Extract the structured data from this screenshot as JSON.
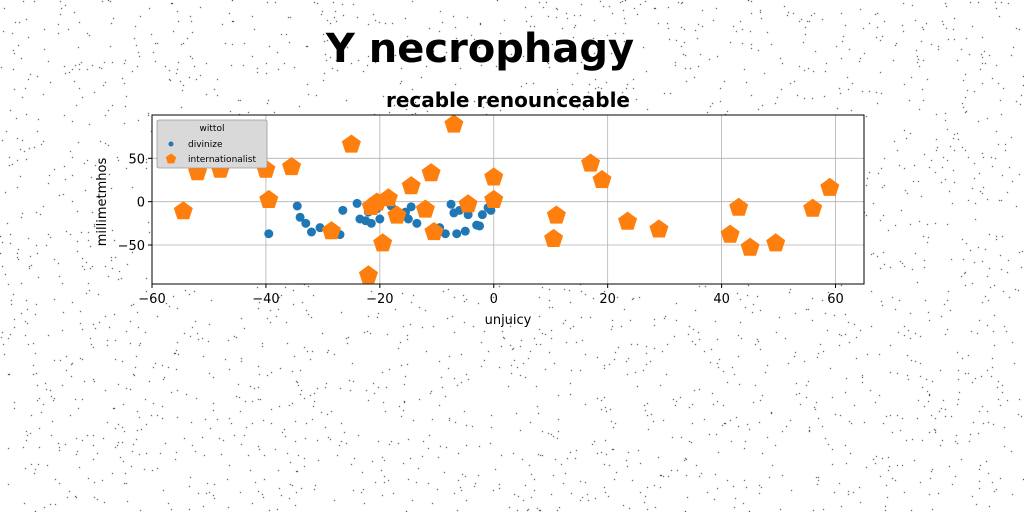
{
  "figure": {
    "suptitle": "Y necrophagy"
  },
  "chart_data": {
    "type": "scatter",
    "title": "recable renounceable",
    "xlabel": "unjuicy",
    "ylabel": "millimetmhos",
    "xlim": [
      -60,
      65
    ],
    "ylim": [
      -95,
      100
    ],
    "xticks": [
      -60,
      -40,
      -20,
      0,
      20,
      40,
      60
    ],
    "yticks": [
      -50,
      0,
      50
    ],
    "grid": true,
    "legend": {
      "title": "wittol",
      "placement": "upper-left"
    },
    "series": [
      {
        "name": "divinize",
        "marker": "circle",
        "color": "#1f77b4",
        "points": [
          [
            -39.5,
            -37
          ],
          [
            -34.5,
            -5
          ],
          [
            -34,
            -18
          ],
          [
            -33,
            -25
          ],
          [
            -32,
            -35
          ],
          [
            -30.5,
            -30
          ],
          [
            -28,
            -32
          ],
          [
            -27,
            -38
          ],
          [
            -26.5,
            -10
          ],
          [
            -24,
            -2
          ],
          [
            -23.5,
            -20
          ],
          [
            -22.5,
            -22
          ],
          [
            -22,
            -12
          ],
          [
            -21.5,
            -25
          ],
          [
            -20.5,
            -8
          ],
          [
            -20,
            -20
          ],
          [
            -18,
            -5
          ],
          [
            -17,
            -18
          ],
          [
            -15.5,
            -12
          ],
          [
            -15,
            -20
          ],
          [
            -14.5,
            -6
          ],
          [
            -13.5,
            -25
          ],
          [
            -9.5,
            -30
          ],
          [
            -8.5,
            -37
          ],
          [
            -7.5,
            -3
          ],
          [
            -7,
            -13
          ],
          [
            -6.5,
            -37
          ],
          [
            -6,
            -10
          ],
          [
            -5,
            -34
          ],
          [
            -4.5,
            -15
          ],
          [
            -4,
            -5
          ],
          [
            -3,
            -27
          ],
          [
            -2.5,
            -28
          ],
          [
            -2,
            -15
          ],
          [
            -1,
            -7
          ],
          [
            -0.5,
            -10
          ]
        ]
      },
      {
        "name": "internationalist",
        "marker": "pentagon",
        "color": "#ff7f0e",
        "points": [
          [
            -54.5,
            -11
          ],
          [
            -52,
            34
          ],
          [
            -48,
            37
          ],
          [
            -40,
            37
          ],
          [
            -39.5,
            2
          ],
          [
            -35.5,
            40
          ],
          [
            -28.5,
            -34
          ],
          [
            -25,
            66
          ],
          [
            -22,
            -85
          ],
          [
            -21.5,
            -6
          ],
          [
            -20.5,
            -1
          ],
          [
            -19.5,
            -48
          ],
          [
            -18.5,
            4
          ],
          [
            -17,
            -16
          ],
          [
            -14.5,
            18
          ],
          [
            -12,
            -9
          ],
          [
            -11,
            33
          ],
          [
            -10.5,
            -35
          ],
          [
            -7,
            89
          ],
          [
            -4.5,
            -3
          ],
          [
            0,
            28
          ],
          [
            0,
            2
          ],
          [
            10.5,
            -43
          ],
          [
            11,
            -16
          ],
          [
            17,
            44
          ],
          [
            19,
            25
          ],
          [
            23.5,
            -23
          ],
          [
            29,
            -32
          ],
          [
            41.5,
            -38
          ],
          [
            43,
            -7
          ],
          [
            45,
            -53
          ],
          [
            49.5,
            -48
          ],
          [
            56,
            -8
          ],
          [
            59,
            16
          ]
        ]
      }
    ]
  }
}
